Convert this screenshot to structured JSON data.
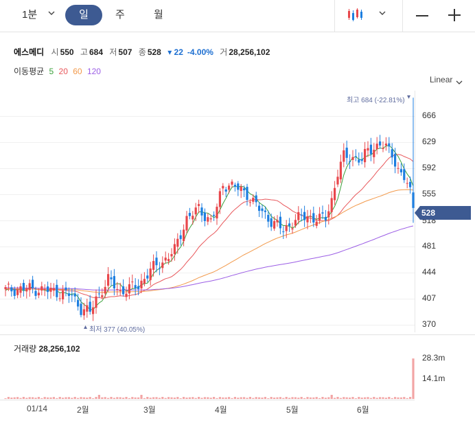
{
  "toolbar": {
    "period_label": "1분",
    "tabs": [
      {
        "label": "일",
        "active": true
      },
      {
        "label": "주",
        "active": false
      },
      {
        "label": "월",
        "active": false
      }
    ],
    "chart_type_icon": "candlestick-icon",
    "zoom_out_icon": "minus-icon",
    "zoom_in_icon": "plus-icon",
    "accent_color": "#3d5a92"
  },
  "quote": {
    "name": "에스메디",
    "open_label": "시",
    "open": "550",
    "high_label": "고",
    "high": "684",
    "low_label": "저",
    "low": "507",
    "close_label": "종",
    "close": "528",
    "change": "▾ 22",
    "change_pct": "-4.00%",
    "volume_label": "거",
    "volume": "28,256,102"
  },
  "moving_average": {
    "label": "이동평균",
    "periods": [
      {
        "label": "5",
        "color": "#3aa03a"
      },
      {
        "label": "20",
        "color": "#e8565a"
      },
      {
        "label": "60",
        "color": "#f2994a"
      },
      {
        "label": "120",
        "color": "#9b5de5"
      }
    ]
  },
  "scale_mode": "Linear",
  "price_axis": {
    "ticks": [
      "666",
      "629",
      "592",
      "555",
      "518",
      "481",
      "444",
      "407",
      "370"
    ],
    "current_price_tag": "528"
  },
  "annotations": {
    "high": "최고 684 (-22.81%)",
    "low": "최저 377 (40.05%)"
  },
  "volume_panel": {
    "label": "거래량",
    "value": "28,256,102",
    "ticks": [
      "28.3m",
      "14.1m"
    ]
  },
  "x_axis": {
    "labels": [
      "01/14",
      "2월",
      "3월",
      "4월",
      "5월",
      "6월"
    ]
  },
  "chart_data": {
    "type": "candlestick",
    "ylim": [
      352,
      694
    ],
    "anchors": [
      [
        0,
        412
      ],
      [
        8,
        414
      ],
      [
        16,
        410
      ],
      [
        22,
        404
      ],
      [
        25,
        386
      ],
      [
        28,
        380
      ],
      [
        30,
        400
      ],
      [
        34,
        426
      ],
      [
        38,
        410
      ],
      [
        44,
        418
      ],
      [
        48,
        440
      ],
      [
        52,
        452
      ],
      [
        56,
        468
      ],
      [
        60,
        514
      ],
      [
        64,
        526
      ],
      [
        68,
        510
      ],
      [
        70,
        528
      ],
      [
        72,
        560
      ],
      [
        74,
        562
      ],
      [
        80,
        548
      ],
      [
        84,
        526
      ],
      [
        88,
        510
      ],
      [
        92,
        496
      ],
      [
        96,
        512
      ],
      [
        100,
        516
      ],
      [
        104,
        512
      ],
      [
        106,
        514
      ],
      [
        108,
        540
      ],
      [
        110,
        578
      ],
      [
        112,
        600
      ],
      [
        116,
        600
      ],
      [
        118,
        594
      ],
      [
        120,
        610
      ],
      [
        124,
        618
      ],
      [
        126,
        612
      ],
      [
        128,
        606
      ],
      [
        130,
        582
      ],
      [
        132,
        570
      ],
      [
        134,
        550
      ],
      [
        135,
        528
      ]
    ],
    "ma_series": [
      {
        "name": "5",
        "color": "#3aa03a",
        "window": 5
      },
      {
        "name": "20",
        "color": "#e8565a",
        "window": 20
      },
      {
        "name": "60",
        "color": "#f2994a",
        "window": 60
      },
      {
        "name": "120",
        "color": "#9b5de5",
        "window": 120
      }
    ],
    "up_color": "#e8474b",
    "down_color": "#1c7ee0"
  }
}
